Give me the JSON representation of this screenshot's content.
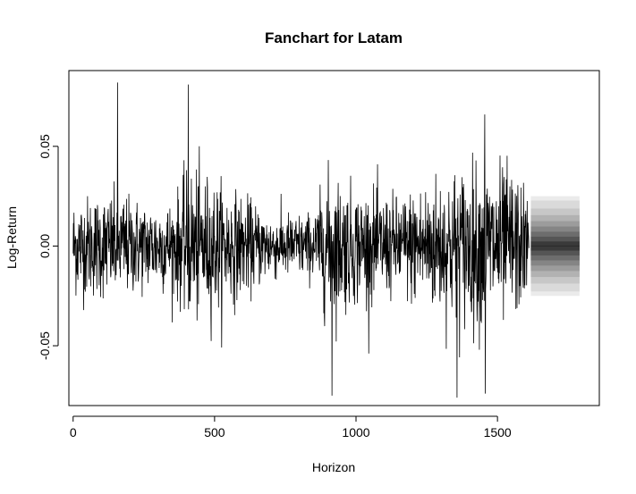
{
  "chart_data": {
    "type": "line",
    "title": "Fanchart for Latam",
    "xlabel": "Horizon",
    "ylabel": "Log-Return",
    "xlim": [
      -15,
      1860
    ],
    "ylim": [
      -0.08,
      0.088
    ],
    "x_ticks": [
      0,
      500,
      1000,
      1500
    ],
    "x_tick_labels": [
      "0",
      "500",
      "1000",
      "1500"
    ],
    "y_ticks": [
      -0.05,
      0.0,
      0.05
    ],
    "y_tick_labels": [
      "-0.05",
      "0.00",
      "0.05"
    ],
    "grid": false,
    "series": [
      {
        "kind": "history",
        "n": 1612,
        "color": "#000000",
        "notable_points": [
          {
            "x": 157,
            "y": 0.082
          },
          {
            "x": 407,
            "y": 0.081
          },
          {
            "x": 915,
            "y": -0.075
          },
          {
            "x": 1357,
            "y": -0.076
          },
          {
            "x": 1455,
            "y": 0.066
          },
          {
            "x": 1457,
            "y": -0.074
          }
        ],
        "volatility_profile": [
          {
            "x": 0,
            "sd": 0.012
          },
          {
            "x": 150,
            "sd": 0.013
          },
          {
            "x": 250,
            "sd": 0.011
          },
          {
            "x": 350,
            "sd": 0.011
          },
          {
            "x": 420,
            "sd": 0.019
          },
          {
            "x": 500,
            "sd": 0.016
          },
          {
            "x": 600,
            "sd": 0.012
          },
          {
            "x": 700,
            "sd": 0.008
          },
          {
            "x": 850,
            "sd": 0.008
          },
          {
            "x": 900,
            "sd": 0.018
          },
          {
            "x": 1000,
            "sd": 0.014
          },
          {
            "x": 1150,
            "sd": 0.012
          },
          {
            "x": 1250,
            "sd": 0.016
          },
          {
            "x": 1350,
            "sd": 0.019
          },
          {
            "x": 1450,
            "sd": 0.02
          },
          {
            "x": 1550,
            "sd": 0.019
          },
          {
            "x": 1612,
            "sd": 0.012
          }
        ]
      },
      {
        "kind": "fan",
        "x_start": 1618,
        "x_end": 1790,
        "center": 0.0,
        "band_upper": [
          0.0023,
          0.0047,
          0.0072,
          0.0098,
          0.0125,
          0.0155,
          0.0188,
          0.0228,
          0.025
        ],
        "band_colors": [
          "#3a3a3a",
          "#555555",
          "#6d6d6d",
          "#858585",
          "#9c9c9c",
          "#b2b2b2",
          "#c7c7c7",
          "#dadada",
          "#ebebeb"
        ]
      }
    ]
  }
}
